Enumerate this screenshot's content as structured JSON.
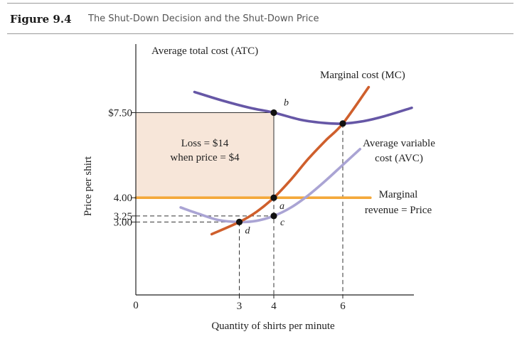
{
  "figure": {
    "number": "Figure 9.4",
    "title": "The Shut-Down Decision and the Shut-Down Price"
  },
  "chart_data": {
    "type": "line",
    "xlabel": "Quantity of shirts per minute",
    "ylabel": "Price per shirt",
    "origin_label": "0",
    "x_ticks": [
      {
        "value": 3,
        "label": "3"
      },
      {
        "value": 4,
        "label": "4"
      },
      {
        "value": 6,
        "label": "6"
      }
    ],
    "y_ticks": [
      {
        "value": 3.0,
        "label": "3.00"
      },
      {
        "value": 3.25,
        "label": "3.25"
      },
      {
        "value": 4.0,
        "label": "4.00"
      },
      {
        "value": 7.5,
        "label": "$7.50"
      }
    ],
    "series": [
      {
        "name": "Average total cost (ATC)",
        "key": "atc",
        "color": "#6657a6",
        "points": [
          [
            1.7,
            8.35
          ],
          [
            2.5,
            8.0
          ],
          [
            3.3,
            7.7
          ],
          [
            4.0,
            7.5
          ],
          [
            4.8,
            7.2
          ],
          [
            5.5,
            7.07
          ],
          [
            6.0,
            7.05
          ],
          [
            6.6,
            7.15
          ],
          [
            7.2,
            7.35
          ],
          [
            8.0,
            7.7
          ]
        ]
      },
      {
        "name": "Marginal cost (MC)",
        "key": "mc",
        "color": "#cf5f2c",
        "points": [
          [
            2.2,
            2.5
          ],
          [
            3.0,
            3.0
          ],
          [
            3.5,
            3.42
          ],
          [
            4.0,
            4.0
          ],
          [
            4.5,
            4.75
          ],
          [
            5.0,
            5.6
          ],
          [
            5.5,
            6.35
          ],
          [
            6.0,
            7.05
          ],
          [
            6.75,
            8.55
          ]
        ]
      },
      {
        "name": "Average variable cost (AVC)",
        "key": "avc",
        "color": "#aaa4d4",
        "points": [
          [
            1.3,
            3.6
          ],
          [
            1.8,
            3.35
          ],
          [
            2.4,
            3.08
          ],
          [
            3.0,
            3.0
          ],
          [
            3.5,
            3.05
          ],
          [
            4.0,
            3.25
          ],
          [
            4.5,
            3.6
          ],
          [
            5.0,
            4.1
          ],
          [
            5.5,
            4.7
          ],
          [
            6.0,
            5.35
          ],
          [
            6.5,
            6.0
          ]
        ]
      },
      {
        "name": "Marginal revenue = Price",
        "key": "mr",
        "color": "#f4a83a",
        "points": [
          [
            0,
            4.0
          ],
          [
            6.8,
            4.0
          ]
        ]
      }
    ],
    "curve_labels": {
      "atc": "Average total cost (ATC)",
      "mc": "Marginal cost (MC)",
      "avc_line1": "Average variable",
      "avc_line2": "cost (AVC)",
      "mr_line1": "Marginal",
      "mr_line2": "revenue = Price"
    },
    "points": [
      {
        "label": "b",
        "x": 4,
        "y": 7.5
      },
      {
        "label": "a",
        "x": 4,
        "y": 4.0
      },
      {
        "label": "c",
        "x": 4,
        "y": 3.25
      },
      {
        "label": "d",
        "x": 3,
        "y": 3.0
      },
      {
        "label": "",
        "x": 6,
        "y": 7.05
      }
    ],
    "loss_area": {
      "x_from": 0,
      "x_to": 4,
      "y_from": 4.0,
      "y_to": 7.5,
      "fill": "#f7e6d9"
    },
    "loss_label": {
      "line1": "Loss = $14",
      "line2": "when price = $4"
    },
    "xlim": [
      0,
      8
    ],
    "ylim": [
      0,
      10
    ]
  }
}
